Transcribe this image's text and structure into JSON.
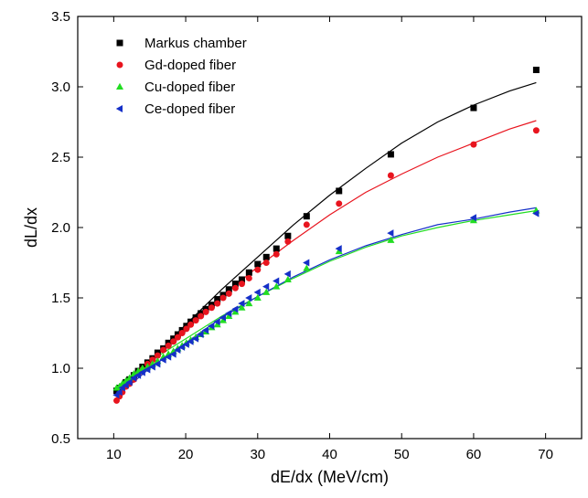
{
  "chart_data": {
    "type": "scatter",
    "xlabel": "dE/dx (MeV/cm)",
    "ylabel": "dL/dx",
    "xlim": [
      5,
      75
    ],
    "ylim": [
      0.5,
      3.5
    ],
    "x_ticks": [
      "10",
      "20",
      "30",
      "40",
      "50",
      "60",
      "70"
    ],
    "y_ticks": [
      "0.5",
      "1.0",
      "1.5",
      "2.0",
      "2.5",
      "3.0",
      "3.5"
    ],
    "grid": false,
    "legend_position": "top-left",
    "series": [
      {
        "name": "Markus chamber",
        "color": "#000000",
        "marker": "square",
        "x": [
          10.4,
          10.8,
          11.2,
          11.7,
          12.2,
          12.8,
          13.4,
          14.0,
          14.7,
          15.4,
          16.1,
          16.9,
          17.6,
          18.3,
          18.9,
          19.5,
          20.1,
          20.7,
          21.4,
          22.1,
          22.8,
          23.6,
          24.4,
          25.2,
          26.0,
          26.9,
          27.8,
          28.8,
          30.0,
          31.2,
          32.6,
          34.2,
          36.8,
          41.3,
          48.5,
          60.0,
          68.7
        ],
        "y": [
          0.84,
          0.86,
          0.87,
          0.9,
          0.92,
          0.95,
          0.98,
          1.01,
          1.04,
          1.07,
          1.11,
          1.14,
          1.18,
          1.21,
          1.24,
          1.27,
          1.3,
          1.33,
          1.36,
          1.39,
          1.42,
          1.45,
          1.49,
          1.52,
          1.56,
          1.6,
          1.63,
          1.68,
          1.74,
          1.79,
          1.85,
          1.94,
          2.08,
          2.26,
          2.52,
          2.85,
          3.12
        ]
      },
      {
        "name": "Gd-doped fiber",
        "color": "#e8141e",
        "marker": "circle",
        "x": [
          10.4,
          10.8,
          11.2,
          11.7,
          12.2,
          12.8,
          13.4,
          14.0,
          14.7,
          15.4,
          16.1,
          16.9,
          17.6,
          18.3,
          18.9,
          19.5,
          20.1,
          20.7,
          21.4,
          22.1,
          22.8,
          23.6,
          24.4,
          25.2,
          26.0,
          26.9,
          27.8,
          28.8,
          30.0,
          31.2,
          32.6,
          34.2,
          36.8,
          41.3,
          48.5,
          60.0,
          68.7
        ],
        "y": [
          0.77,
          0.8,
          0.83,
          0.87,
          0.89,
          0.92,
          0.96,
          0.99,
          1.03,
          1.06,
          1.09,
          1.13,
          1.16,
          1.19,
          1.22,
          1.25,
          1.28,
          1.31,
          1.34,
          1.37,
          1.4,
          1.43,
          1.46,
          1.5,
          1.53,
          1.57,
          1.6,
          1.64,
          1.7,
          1.75,
          1.81,
          1.9,
          2.02,
          2.17,
          2.37,
          2.59,
          2.69
        ]
      },
      {
        "name": "Cu-doped fiber",
        "color": "#22dd22",
        "marker": "triangle-up",
        "x": [
          10.4,
          10.8,
          11.2,
          11.7,
          12.2,
          12.8,
          13.4,
          14.0,
          14.7,
          15.4,
          16.1,
          16.9,
          17.6,
          18.3,
          18.9,
          19.5,
          20.1,
          20.7,
          21.4,
          22.1,
          22.8,
          23.6,
          24.4,
          25.2,
          26.0,
          26.9,
          27.8,
          28.8,
          30.0,
          31.2,
          32.6,
          34.2,
          36.8,
          41.3,
          48.5,
          60.0,
          68.7
        ],
        "y": [
          0.86,
          0.87,
          0.89,
          0.91,
          0.93,
          0.96,
          0.98,
          1.0,
          1.01,
          1.03,
          1.05,
          1.08,
          1.1,
          1.12,
          1.14,
          1.16,
          1.18,
          1.2,
          1.22,
          1.24,
          1.26,
          1.29,
          1.31,
          1.34,
          1.37,
          1.4,
          1.43,
          1.46,
          1.5,
          1.54,
          1.58,
          1.63,
          1.71,
          1.83,
          1.91,
          2.05,
          2.12
        ]
      },
      {
        "name": "Ce-doped fiber",
        "color": "#1530c8",
        "marker": "triangle-left",
        "x": [
          10.4,
          10.8,
          11.2,
          11.7,
          12.2,
          12.8,
          13.4,
          14.0,
          14.7,
          15.4,
          16.1,
          16.9,
          17.6,
          18.3,
          18.9,
          19.5,
          20.1,
          20.7,
          21.4,
          22.1,
          22.8,
          23.6,
          24.4,
          25.2,
          26.0,
          26.9,
          27.8,
          28.8,
          30.0,
          31.2,
          32.6,
          34.2,
          36.8,
          41.3,
          48.5,
          60.0,
          68.7
        ],
        "y": [
          0.81,
          0.83,
          0.86,
          0.88,
          0.9,
          0.93,
          0.95,
          0.97,
          0.99,
          1.01,
          1.03,
          1.06,
          1.08,
          1.1,
          1.13,
          1.15,
          1.17,
          1.19,
          1.21,
          1.24,
          1.27,
          1.3,
          1.33,
          1.36,
          1.39,
          1.42,
          1.46,
          1.5,
          1.54,
          1.58,
          1.62,
          1.67,
          1.75,
          1.85,
          1.96,
          2.07,
          2.1
        ]
      }
    ],
    "fits": [
      {
        "series": "Markus chamber",
        "color": "#000000",
        "x": [
          10.4,
          15,
          20,
          25,
          30,
          35,
          40,
          45,
          50,
          55,
          60,
          65,
          68.7
        ],
        "y": [
          0.81,
          1.05,
          1.31,
          1.56,
          1.79,
          2.02,
          2.23,
          2.42,
          2.6,
          2.75,
          2.87,
          2.97,
          3.03
        ]
      },
      {
        "series": "Gd-doped fiber",
        "color": "#e8141e",
        "x": [
          10.4,
          15,
          20,
          25,
          30,
          35,
          40,
          45,
          50,
          55,
          60,
          65,
          68.7
        ],
        "y": [
          0.8,
          1.04,
          1.28,
          1.51,
          1.72,
          1.91,
          2.09,
          2.25,
          2.38,
          2.5,
          2.6,
          2.7,
          2.76
        ]
      },
      {
        "series": "Cu-doped fiber",
        "color": "#22dd22",
        "x": [
          10.4,
          15,
          20,
          25,
          30,
          35,
          40,
          45,
          50,
          55,
          60,
          65,
          68.7
        ],
        "y": [
          0.83,
          1.05,
          1.21,
          1.37,
          1.51,
          1.64,
          1.76,
          1.86,
          1.94,
          2.0,
          2.05,
          2.09,
          2.12
        ]
      },
      {
        "series": "Ce-doped fiber",
        "color": "#1530c8",
        "x": [
          10.4,
          15,
          20,
          25,
          30,
          35,
          40,
          45,
          50,
          55,
          60,
          65,
          68.7
        ],
        "y": [
          0.8,
          1.0,
          1.18,
          1.36,
          1.51,
          1.65,
          1.77,
          1.87,
          1.95,
          2.02,
          2.06,
          2.11,
          2.14
        ]
      }
    ]
  }
}
